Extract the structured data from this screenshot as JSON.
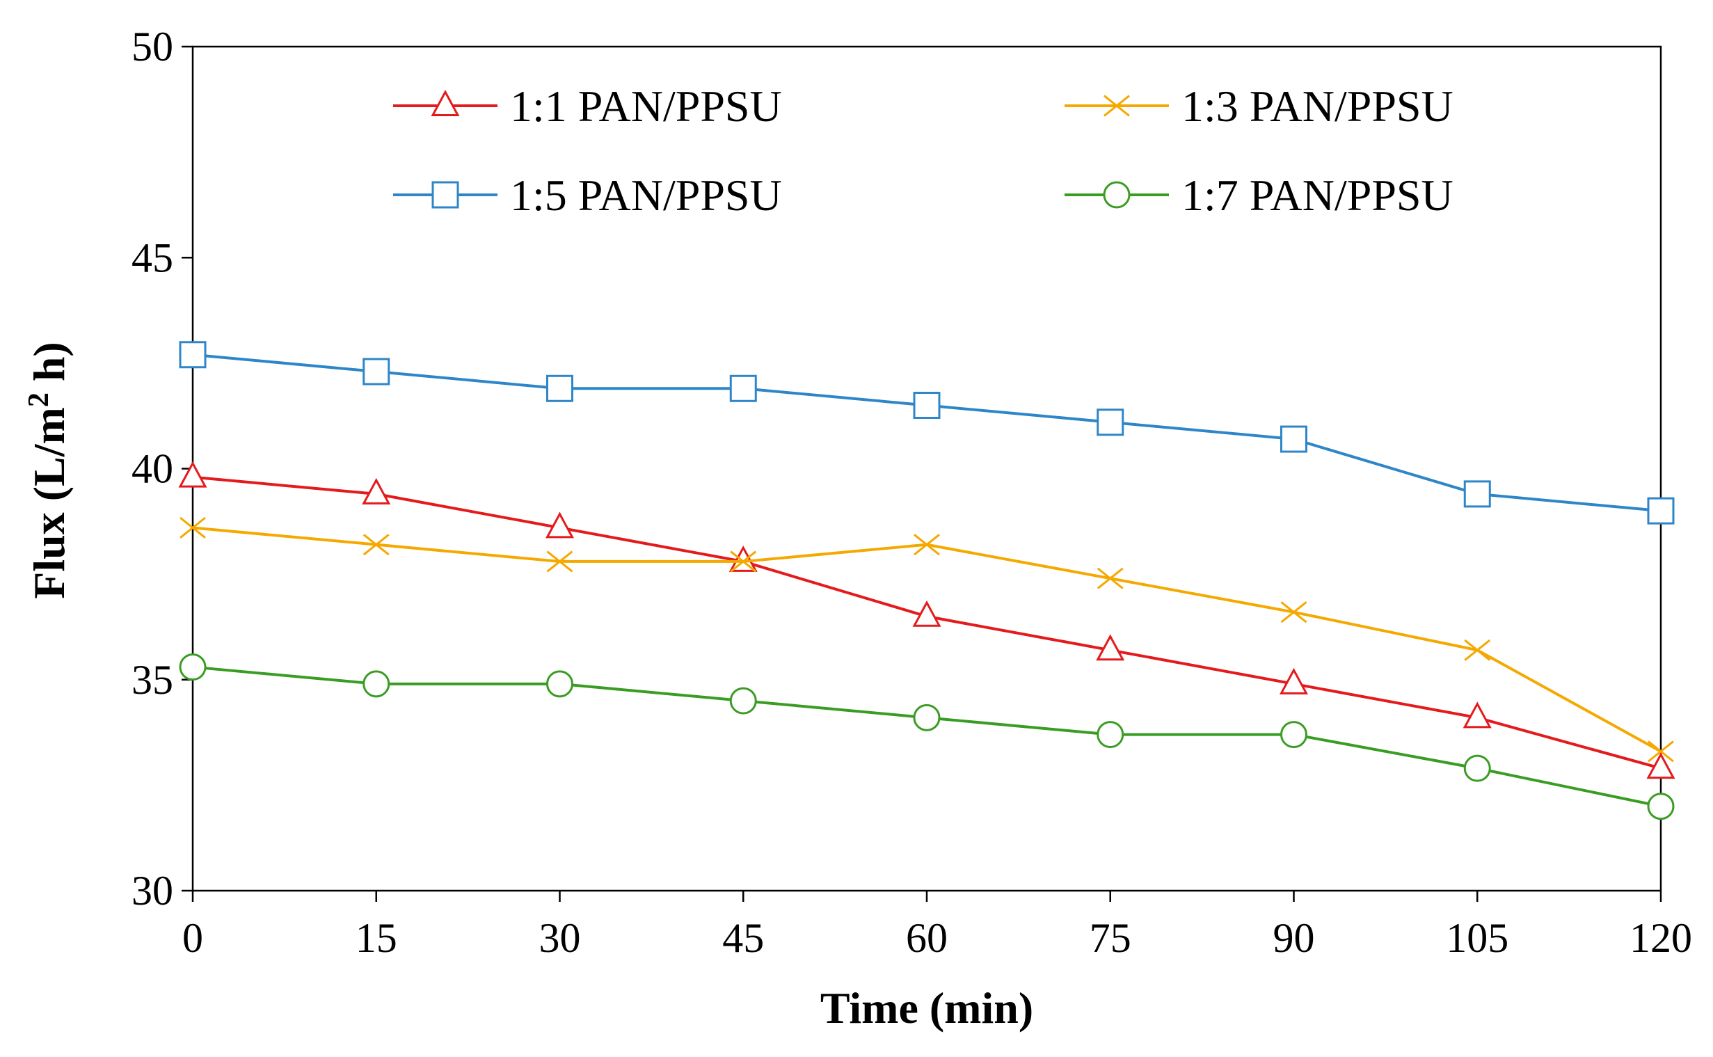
{
  "chart_data": {
    "type": "line",
    "title": "",
    "xlabel": "Time (min)",
    "ylabel_prefix": "Flux (L/m",
    "ylabel_sup": "2",
    "ylabel_suffix": " h)",
    "x": [
      0,
      15,
      30,
      45,
      60,
      75,
      90,
      105,
      120
    ],
    "x_ticks": [
      "0",
      "15",
      "30",
      "45",
      "60",
      "75",
      "90",
      "105",
      "120"
    ],
    "y_ticks": [
      "30",
      "35",
      "40",
      "45",
      "50"
    ],
    "xlim": [
      0,
      120
    ],
    "ylim": [
      30,
      50
    ],
    "grid": false,
    "legend_position": "top",
    "series": [
      {
        "name": "1:1 PAN/PPSU",
        "color": "#e41a1c",
        "marker": "triangle",
        "values": [
          39.8,
          39.4,
          38.6,
          37.8,
          36.5,
          35.7,
          34.9,
          34.1,
          32.9
        ]
      },
      {
        "name": "1:3 PAN/PPSU",
        "color": "#f5a900",
        "marker": "x",
        "values": [
          38.6,
          38.2,
          37.8,
          37.8,
          38.2,
          37.4,
          36.6,
          35.7,
          33.3
        ]
      },
      {
        "name": "1:5 PAN/PPSU",
        "color": "#2e86c8",
        "marker": "square",
        "values": [
          42.7,
          42.3,
          41.9,
          41.9,
          41.5,
          41.1,
          40.7,
          39.4,
          39.0
        ]
      },
      {
        "name": "1:7 PAN/PPSU",
        "color": "#3a9d23",
        "marker": "circle",
        "values": [
          35.3,
          34.9,
          34.9,
          34.5,
          34.1,
          33.7,
          33.7,
          32.9,
          32.0
        ]
      }
    ]
  }
}
